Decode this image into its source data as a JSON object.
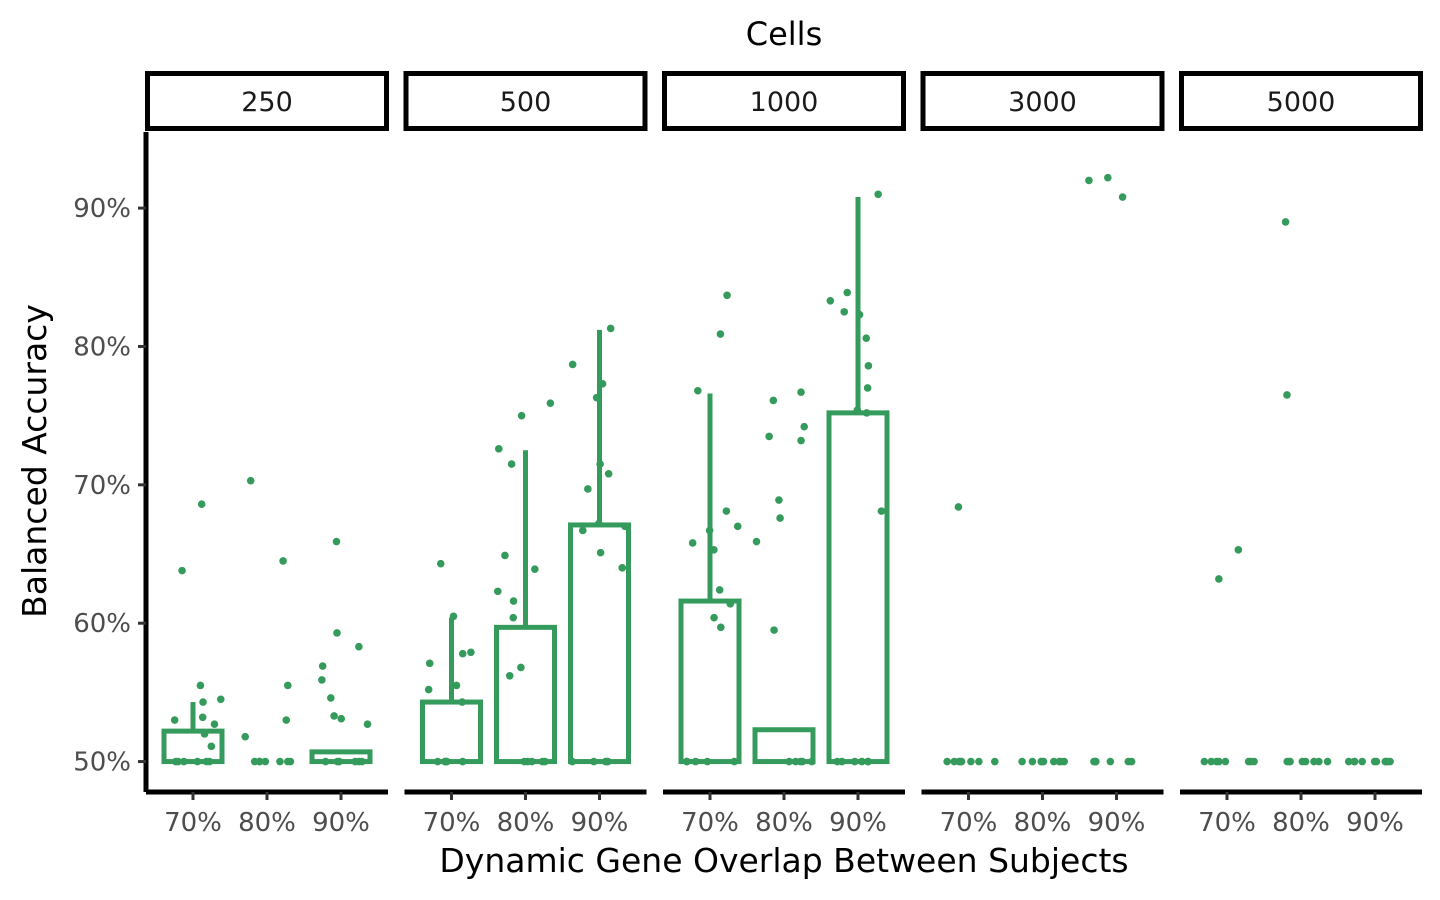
{
  "chart_data": {
    "type": "bar",
    "title": "Cells",
    "xlabel": "Dynamic Gene Overlap Between Subjects",
    "ylabel": "Balanced Accuracy",
    "ylim": [
      0.478,
      0.955
    ],
    "y_ticks": [
      0.5,
      0.6,
      0.7,
      0.8,
      0.9
    ],
    "y_tick_labels": [
      "50%",
      "60%",
      "70%",
      "80%",
      "90%"
    ],
    "categories": [
      "70%",
      "80%",
      "90%"
    ],
    "grid": false,
    "legend": "none",
    "color": "#359b5c",
    "facets": [
      {
        "label": "250",
        "bars": [
          {
            "category": "70%",
            "mean": 0.522,
            "error_upper": 0.543,
            "points": [
              0.686,
              0.638,
              0.555,
              0.545,
              0.543,
              0.532,
              0.53,
              0.527,
              0.52,
              0.511,
              0.5,
              0.5,
              0.5,
              0.5,
              0.5,
              0.5
            ]
          },
          {
            "category": "80%",
            "mean": 0.5,
            "error_upper": 0.5,
            "points": [
              0.703,
              0.645,
              0.555,
              0.53,
              0.518,
              0.5,
              0.5,
              0.5,
              0.5,
              0.5,
              0.5,
              0.5
            ]
          },
          {
            "category": "90%",
            "mean": 0.507,
            "error_upper": 0.507,
            "points": [
              0.659,
              0.593,
              0.583,
              0.569,
              0.559,
              0.546,
              0.533,
              0.531,
              0.527,
              0.5,
              0.5,
              0.5,
              0.5,
              0.5,
              0.5
            ]
          }
        ]
      },
      {
        "label": "500",
        "bars": [
          {
            "category": "70%",
            "mean": 0.543,
            "error_upper": 0.604,
            "points": [
              0.643,
              0.605,
              0.579,
              0.578,
              0.571,
              0.555,
              0.552,
              0.543,
              0.5,
              0.5,
              0.5,
              0.5,
              0.5,
              0.5
            ]
          },
          {
            "category": "80%",
            "mean": 0.597,
            "error_upper": 0.725,
            "points": [
              0.759,
              0.75,
              0.726,
              0.715,
              0.649,
              0.639,
              0.623,
              0.616,
              0.604,
              0.568,
              0.562,
              0.5,
              0.5,
              0.5,
              0.5,
              0.5
            ]
          },
          {
            "category": "90%",
            "mean": 0.671,
            "error_upper": 0.812,
            "points": [
              0.813,
              0.787,
              0.773,
              0.763,
              0.715,
              0.708,
              0.697,
              0.672,
              0.67,
              0.667,
              0.651,
              0.64,
              0.5,
              0.5,
              0.5,
              0.5,
              0.5
            ]
          }
        ]
      },
      {
        "label": "1000",
        "bars": [
          {
            "category": "70%",
            "mean": 0.616,
            "error_upper": 0.766,
            "points": [
              0.837,
              0.809,
              0.768,
              0.681,
              0.67,
              0.667,
              0.658,
              0.653,
              0.624,
              0.614,
              0.604,
              0.597,
              0.5,
              0.5,
              0.5,
              0.5,
              0.5
            ]
          },
          {
            "category": "80%",
            "mean": 0.523,
            "error_upper": 0.523,
            "points": [
              0.767,
              0.761,
              0.742,
              0.735,
              0.732,
              0.689,
              0.676,
              0.659,
              0.595,
              0.5,
              0.5,
              0.5,
              0.5,
              0.5
            ]
          },
          {
            "category": "90%",
            "mean": 0.752,
            "error_upper": 0.908,
            "points": [
              0.91,
              0.839,
              0.833,
              0.825,
              0.823,
              0.806,
              0.786,
              0.77,
              0.754,
              0.752,
              0.681,
              0.5,
              0.5,
              0.5,
              0.5,
              0.5,
              0.5
            ]
          }
        ]
      },
      {
        "label": "3000",
        "bars": [
          {
            "category": "70%",
            "mean": 0.5,
            "error_upper": 0.5,
            "points": [
              0.684,
              0.5,
              0.5,
              0.5,
              0.5,
              0.5,
              0.5,
              0.5,
              0.5
            ]
          },
          {
            "category": "80%",
            "mean": 0.5,
            "error_upper": 0.5,
            "points": [
              0.5,
              0.5,
              0.5,
              0.5,
              0.5,
              0.5,
              0.5,
              0.5,
              0.5
            ]
          },
          {
            "category": "90%",
            "mean": 0.5,
            "error_upper": 0.5,
            "points": [
              0.922,
              0.92,
              0.908,
              0.5,
              0.5,
              0.5,
              0.5,
              0.5,
              0.5,
              0.5
            ]
          }
        ]
      },
      {
        "label": "5000",
        "bars": [
          {
            "category": "70%",
            "mean": 0.5,
            "error_upper": 0.5,
            "points": [
              0.653,
              0.632,
              0.5,
              0.5,
              0.5,
              0.5,
              0.5,
              0.5,
              0.5,
              0.5
            ]
          },
          {
            "category": "80%",
            "mean": 0.5,
            "error_upper": 0.5,
            "points": [
              0.89,
              0.765,
              0.5,
              0.5,
              0.5,
              0.5,
              0.5,
              0.5,
              0.5,
              0.5
            ]
          },
          {
            "category": "90%",
            "mean": 0.5,
            "error_upper": 0.5,
            "points": [
              0.5,
              0.5,
              0.5,
              0.5,
              0.5,
              0.5,
              0.5,
              0.5,
              0.5,
              0.5
            ]
          }
        ]
      }
    ]
  }
}
